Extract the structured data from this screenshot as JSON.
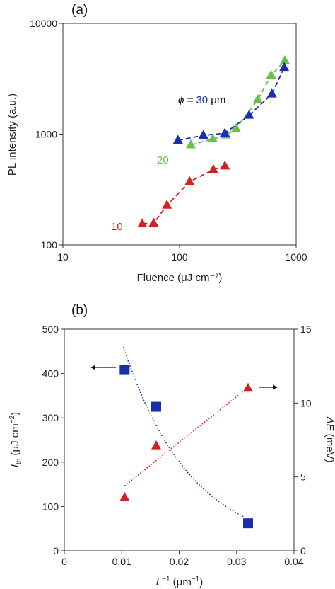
{
  "chart_data": [
    {
      "panel_label": "(a)",
      "type": "scatter",
      "xlabel": "Fluence (μJ cm⁻²)",
      "ylabel": "PL intensity (a.u.)",
      "xscale": "log",
      "yscale": "log",
      "xlim": [
        10,
        1000
      ],
      "ylim": [
        100,
        10000
      ],
      "xticks": [
        "10",
        "100",
        "1000"
      ],
      "yticks": [
        "100",
        "1000",
        "10000"
      ],
      "grid": false,
      "series": [
        {
          "name": "10",
          "color": "#d42020",
          "marker": "triangle",
          "x": [
            48,
            60,
            78,
            122,
            195,
            245
          ],
          "y": [
            155,
            157,
            228,
            372,
            478,
            515
          ]
        },
        {
          "name": "20",
          "color": "#6cc04a",
          "marker": "triangle",
          "x": [
            125,
            193,
            250,
            305,
            470,
            610,
            800
          ],
          "y": [
            800,
            905,
            980,
            1120,
            2050,
            3400,
            4600
          ]
        },
        {
          "name": "30",
          "color": "#1a2fb0",
          "marker": "triangle",
          "x": [
            97,
            160,
            245,
            395,
            620,
            790
          ],
          "y": [
            880,
            975,
            1020,
            1480,
            2300,
            4000
          ]
        }
      ],
      "annotations": [
        {
          "kind": "phi-label",
          "prefix": "ϕ = ",
          "value": "30",
          "suffix": " μm",
          "color": "#1a2fb0"
        },
        {
          "kind": "series-label",
          "text": "20",
          "color": "#6cc04a"
        },
        {
          "kind": "series-label",
          "text": "10",
          "color": "#d42020"
        }
      ]
    },
    {
      "panel_label": "(b)",
      "type": "scatter",
      "xlabel": "L⁻¹ (μm⁻¹)",
      "ylabel": "Ith (μJ cm⁻²)",
      "y2label": "ΔE (meV)",
      "xlim": [
        0,
        0.04
      ],
      "ylim": [
        0,
        500
      ],
      "y2lim": [
        0,
        15
      ],
      "xticks": [
        "0",
        "0.01",
        "0.02",
        "0.03",
        "0.04"
      ],
      "yticks": [
        "0",
        "100",
        "200",
        "300",
        "400",
        "500"
      ],
      "y2ticks": [
        "0",
        "5",
        "10",
        "15"
      ],
      "grid": false,
      "series": [
        {
          "name": "Ith",
          "axis": "left",
          "color": "#1a2fb0",
          "marker": "square",
          "x": [
            0.0105,
            0.016,
            0.032
          ],
          "y": [
            408,
            325,
            62
          ],
          "fit": {
            "style": "dotted",
            "x_from": 0.0103,
            "x_to": 0.0315
          }
        },
        {
          "name": "ΔE",
          "axis": "right",
          "color": "#d42020",
          "marker": "triangle",
          "x": [
            0.0105,
            0.016,
            0.032
          ],
          "y": [
            3.6,
            7.1,
            11.0
          ],
          "fit": {
            "style": "dotted",
            "x_from": 0.0105,
            "x_to": 0.0315
          }
        }
      ]
    }
  ]
}
